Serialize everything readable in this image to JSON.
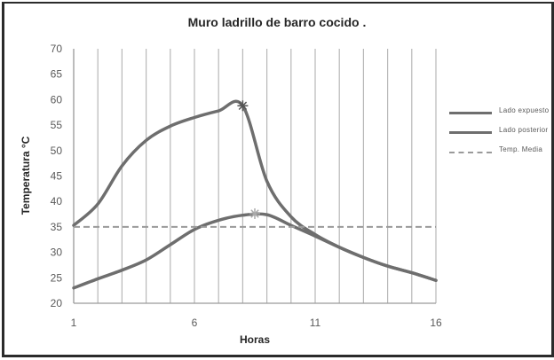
{
  "chart_data": {
    "type": "line",
    "title": "Muro  ladrillo de barro cocido .",
    "xlabel": "Horas",
    "ylabel": "Temperatura °C",
    "xlim": [
      1,
      16
    ],
    "ylim": [
      20,
      70
    ],
    "x_ticks": [
      1,
      6,
      11,
      16
    ],
    "y_ticks": [
      20,
      25,
      30,
      35,
      40,
      45,
      50,
      55,
      60,
      65,
      70
    ],
    "grid": {
      "vertical": true,
      "horizontal": false,
      "vertical_every": 1
    },
    "legend_position": "right",
    "x": [
      1,
      2,
      3,
      4,
      5,
      6,
      7,
      8,
      9,
      10,
      11,
      12,
      13,
      14,
      15,
      16
    ],
    "series": [
      {
        "name": "Lado expuesto",
        "color": "#6e6e6e",
        "values": [
          35.3,
          39.5,
          47.0,
          52.0,
          54.8,
          56.5,
          57.8,
          58.8,
          44.0,
          37.0,
          33.5,
          31.0,
          29.0,
          27.3,
          26.0,
          24.5
        ],
        "marker": {
          "x": 8,
          "y": 58.8,
          "symbol": "star"
        }
      },
      {
        "name": "Lado posterior",
        "color": "#6e6e6e",
        "values": [
          23.0,
          24.8,
          26.5,
          28.5,
          31.5,
          34.5,
          36.3,
          37.3,
          37.4,
          35.3,
          33.2,
          31.0,
          29.0,
          27.3,
          26.0,
          24.5
        ],
        "marker": {
          "x": 8.5,
          "y": 37.6,
          "symbol": "star"
        }
      },
      {
        "name": "Temp. Media",
        "color": "#9a9a9a",
        "style": "dashed",
        "values": [
          35,
          35,
          35,
          35,
          35,
          35,
          35,
          35,
          35,
          35,
          35,
          35,
          35,
          35,
          35,
          35
        ]
      }
    ]
  },
  "labels": {
    "title": "Muro  ladrillo de barro cocido .",
    "xlabel": "Horas",
    "ylabel": "Temperatura °C"
  },
  "legend": [
    {
      "label": "Lado expuesto",
      "style": "solid"
    },
    {
      "label": "Lado posterior",
      "style": "solid"
    },
    {
      "label": "Temp. Media",
      "style": "dashed"
    }
  ]
}
